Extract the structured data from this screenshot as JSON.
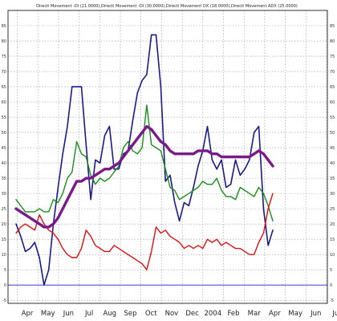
{
  "chart_data": {
    "type": "line",
    "title": "Directi Movement -DI (21.0000),Directi Movement -DI (30.0000),Directi Movement DX (18.0000),Directi Movement ADX (25.0000)",
    "xlabel": "",
    "ylabel": "",
    "ylim": [
      -6,
      90
    ],
    "grid": true,
    "x_tick_labels": [
      "Apr",
      "May",
      "Jun",
      "Jul",
      "Aug",
      "Sep",
      "Oct",
      "Nov",
      "Dec",
      "2004",
      "Feb",
      "Mar",
      "Apr",
      "May",
      "Jun",
      "Jul"
    ],
    "y_ticks": [
      -5,
      0,
      5,
      10,
      15,
      20,
      25,
      30,
      35,
      40,
      45,
      50,
      55,
      60,
      65,
      70,
      75,
      80,
      85
    ],
    "zero_line": 0,
    "series": [
      {
        "color": "#1a1a8c",
        "values": [
          20,
          16,
          11,
          12,
          14,
          9,
          0,
          5,
          20,
          32,
          43,
          52,
          65,
          65,
          65,
          46,
          28,
          41,
          40,
          49,
          52,
          38,
          38,
          43,
          44,
          54,
          63,
          67,
          69,
          82,
          82,
          65,
          34,
          36,
          27,
          21,
          27,
          26,
          32,
          39,
          44,
          52,
          41,
          38,
          41,
          32,
          33,
          41,
          36,
          38,
          41,
          50,
          52,
          25,
          13,
          18
        ]
      },
      {
        "color": "#1a8c1a",
        "values": [
          28,
          26,
          24,
          24,
          24,
          25,
          24,
          24,
          28,
          27,
          30,
          35,
          37,
          47,
          43,
          42,
          36,
          33,
          35,
          34,
          35,
          37,
          39,
          45,
          47,
          44,
          43,
          45,
          59,
          46,
          45,
          44,
          38,
          32,
          31,
          28,
          29,
          30,
          31,
          32,
          34,
          33,
          33,
          35,
          31,
          29,
          29,
          28,
          32,
          31,
          30,
          29,
          32,
          30,
          26,
          21
        ]
      },
      {
        "color": "#dd1111",
        "values": [
          17,
          19,
          20,
          19,
          18,
          23,
          20,
          18,
          17,
          15,
          12,
          10,
          9,
          9,
          12,
          18,
          16,
          13,
          12,
          11,
          11,
          13,
          12,
          11,
          10,
          9,
          8,
          7,
          5,
          11,
          19,
          17,
          18,
          16,
          15,
          14,
          12,
          13,
          12,
          13,
          12,
          15,
          14,
          15,
          13,
          14,
          13,
          12,
          12,
          11,
          10,
          10,
          14,
          17,
          25,
          30
        ]
      },
      {
        "color": "#7a1a8a",
        "values": [
          25,
          24,
          23,
          22,
          21,
          20,
          19,
          19,
          20,
          22,
          25,
          28,
          31,
          34,
          34,
          35,
          35,
          36,
          37,
          38,
          38,
          39,
          40,
          42,
          44,
          46,
          48,
          50,
          52,
          51,
          49,
          47,
          46,
          44,
          43,
          43,
          43,
          43,
          43,
          44,
          44,
          44,
          43,
          43,
          42,
          42,
          42,
          42,
          42,
          42,
          42,
          43,
          44,
          43,
          41,
          39
        ]
      }
    ]
  }
}
